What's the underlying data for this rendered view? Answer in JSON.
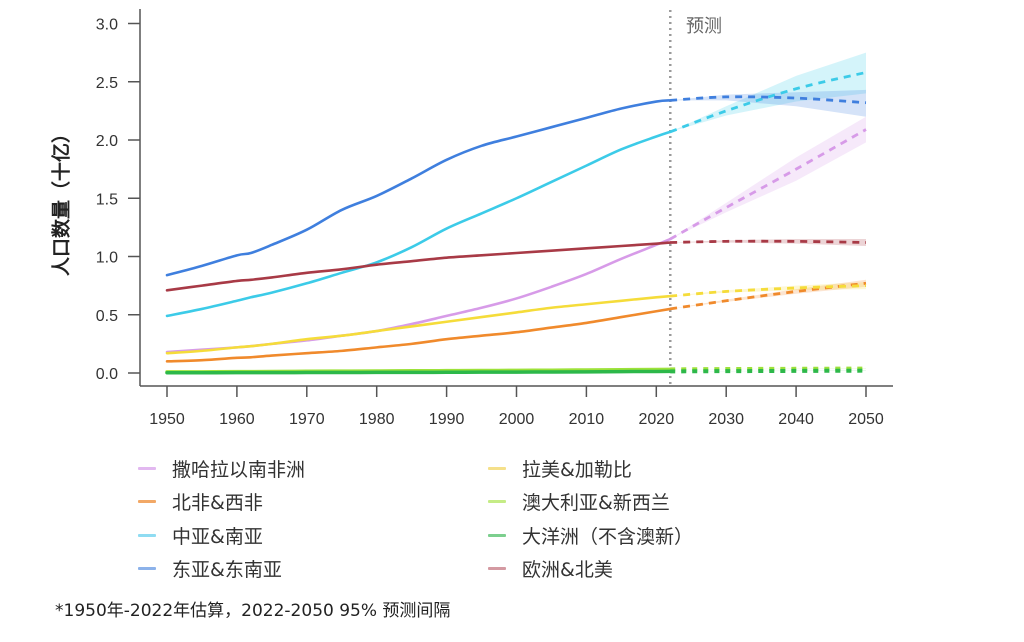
{
  "chart_data": {
    "type": "line",
    "title": "",
    "xlabel": "",
    "ylabel": "人口数量（十亿）",
    "xlim": [
      1950,
      2050
    ],
    "ylim": [
      0,
      3.0
    ],
    "xticks": [
      "1950",
      "1960",
      "1970",
      "1980",
      "1990",
      "2000",
      "2010",
      "2020",
      "2030",
      "2040",
      "2050"
    ],
    "yticks": [
      "0.0",
      "0.5",
      "1.0",
      "1.5",
      "2.0",
      "2.5",
      "3.0"
    ],
    "grid": false,
    "forecast_start": 2022,
    "forecast_label": "预测",
    "legend_position": "bottom",
    "x_estimate": [
      1950,
      1955,
      1960,
      1962,
      1965,
      1970,
      1975,
      1980,
      1985,
      1990,
      1995,
      2000,
      2005,
      2010,
      2015,
      2020,
      2022
    ],
    "x_forecast": [
      2022,
      2030,
      2040,
      2050
    ],
    "series": [
      {
        "name": "撒哈拉以南非洲",
        "color": "#d79be8",
        "values": [
          0.18,
          0.2,
          0.22,
          0.23,
          0.25,
          0.28,
          0.32,
          0.36,
          0.42,
          0.49,
          0.56,
          0.64,
          0.74,
          0.85,
          0.98,
          1.1,
          1.15
        ],
        "forecast": [
          1.15,
          1.42,
          1.75,
          2.09
        ],
        "forecast_lower": [
          1.15,
          1.38,
          1.65,
          1.98
        ],
        "forecast_upper": [
          1.15,
          1.46,
          1.85,
          2.2
        ]
      },
      {
        "name": "北非&西非",
        "color": "#f08a2c",
        "values": [
          0.1,
          0.11,
          0.13,
          0.135,
          0.15,
          0.17,
          0.19,
          0.22,
          0.25,
          0.29,
          0.32,
          0.35,
          0.39,
          0.43,
          0.48,
          0.53,
          0.55
        ],
        "forecast": [
          0.55,
          0.62,
          0.7,
          0.77
        ],
        "forecast_lower": [
          0.55,
          0.61,
          0.68,
          0.74
        ],
        "forecast_upper": [
          0.55,
          0.63,
          0.72,
          0.8
        ]
      },
      {
        "name": "中亚&南亚",
        "color": "#3ccbe8",
        "values": [
          0.49,
          0.55,
          0.62,
          0.65,
          0.69,
          0.77,
          0.86,
          0.95,
          1.08,
          1.24,
          1.37,
          1.5,
          1.64,
          1.78,
          1.92,
          2.03,
          2.07
        ],
        "forecast": [
          2.07,
          2.25,
          2.44,
          2.58
        ],
        "forecast_lower": [
          2.07,
          2.21,
          2.33,
          2.4
        ],
        "forecast_upper": [
          2.07,
          2.29,
          2.55,
          2.75
        ]
      },
      {
        "name": "东亚&东南亚",
        "color": "#3f7fde",
        "values": [
          0.84,
          0.92,
          1.01,
          1.03,
          1.1,
          1.23,
          1.4,
          1.52,
          1.67,
          1.83,
          1.95,
          2.03,
          2.11,
          2.19,
          2.27,
          2.33,
          2.34
        ],
        "forecast": [
          2.34,
          2.37,
          2.36,
          2.32
        ],
        "forecast_lower": [
          2.34,
          2.34,
          2.29,
          2.2
        ],
        "forecast_upper": [
          2.34,
          2.39,
          2.41,
          2.43
        ]
      },
      {
        "name": "拉美&加勒比",
        "color": "#f5dc3a",
        "values": [
          0.17,
          0.19,
          0.22,
          0.23,
          0.25,
          0.29,
          0.32,
          0.36,
          0.4,
          0.44,
          0.48,
          0.52,
          0.56,
          0.59,
          0.62,
          0.65,
          0.66
        ],
        "forecast": [
          0.66,
          0.7,
          0.73,
          0.75
        ],
        "forecast_lower": [
          0.66,
          0.69,
          0.71,
          0.72
        ],
        "forecast_upper": [
          0.66,
          0.71,
          0.75,
          0.78
        ]
      },
      {
        "name": "澳大利亚&新西兰",
        "color": "#9de23a",
        "values": [
          0.01,
          0.01,
          0.012,
          0.012,
          0.013,
          0.015,
          0.016,
          0.017,
          0.019,
          0.02,
          0.021,
          0.023,
          0.024,
          0.026,
          0.028,
          0.03,
          0.031
        ],
        "forecast": [
          0.031,
          0.034,
          0.036,
          0.038
        ],
        "forecast_lower": [
          0.031,
          0.033,
          0.034,
          0.035
        ],
        "forecast_upper": [
          0.031,
          0.035,
          0.038,
          0.041
        ]
      },
      {
        "name": "大洋洲（不含澳新）",
        "color": "#2db84a",
        "values": [
          0.002,
          0.002,
          0.003,
          0.003,
          0.003,
          0.004,
          0.004,
          0.005,
          0.005,
          0.006,
          0.007,
          0.008,
          0.009,
          0.01,
          0.012,
          0.013,
          0.014
        ],
        "forecast": [
          0.014,
          0.016,
          0.018,
          0.02
        ],
        "forecast_lower": [
          0.014,
          0.015,
          0.017,
          0.018
        ],
        "forecast_upper": [
          0.014,
          0.017,
          0.019,
          0.022
        ]
      },
      {
        "name": "欧洲&北美",
        "color": "#a83a46",
        "values": [
          0.71,
          0.75,
          0.79,
          0.8,
          0.82,
          0.86,
          0.89,
          0.93,
          0.96,
          0.99,
          1.01,
          1.03,
          1.05,
          1.07,
          1.09,
          1.11,
          1.12
        ],
        "forecast": [
          1.12,
          1.13,
          1.13,
          1.12
        ],
        "forecast_lower": [
          1.12,
          1.12,
          1.11,
          1.09
        ],
        "forecast_upper": [
          1.12,
          1.14,
          1.15,
          1.15
        ]
      }
    ]
  },
  "legend": {
    "items": [
      {
        "label": "撒哈拉以南非洲",
        "color": "#e2b8f0"
      },
      {
        "label": "北非&西非",
        "color": "#f2a866"
      },
      {
        "label": "中亚&南亚",
        "color": "#8fdcf2"
      },
      {
        "label": "东亚&东南亚",
        "color": "#8cb2ea"
      },
      {
        "label": "拉美&加勒比",
        "color": "#f5e08a"
      },
      {
        "label": "澳大利亚&新西兰",
        "color": "#c5ec86"
      },
      {
        "label": "大洋洲（不含澳新）",
        "color": "#7ccf8e"
      },
      {
        "label": "欧洲&北美",
        "color": "#d49aa2"
      }
    ]
  },
  "footnote": "*1950年-2022年估算，2022-2050 95% 预测间隔"
}
